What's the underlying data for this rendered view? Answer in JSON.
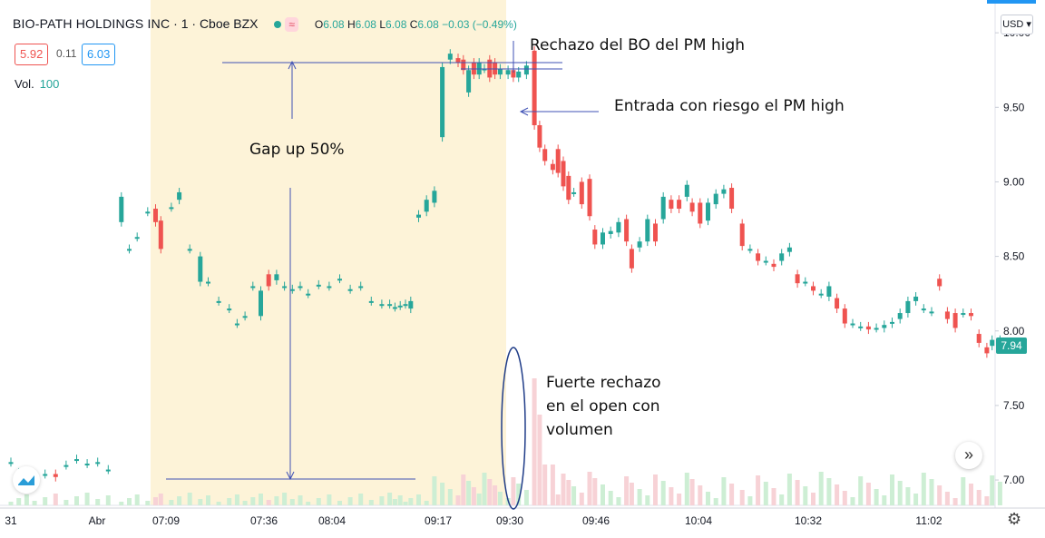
{
  "header": {
    "symbol": "BIO-PATH HOLDINGS INC",
    "interval": "· 1 ·",
    "exchange": "Cboe BZX",
    "badge": "≈",
    "ohlc": {
      "o": "6.08",
      "h": "6.08",
      "l": "6.08",
      "c": "6.08",
      "chg": "−0.03 (−0.49%)"
    },
    "labels": {
      "o": "O",
      "h": "H",
      "l": "L",
      "c": "C"
    }
  },
  "quote": {
    "bid": "5.92",
    "spread": "0.11",
    "ask": "6.03"
  },
  "volume": {
    "label": "Vol.",
    "value": "100"
  },
  "currency": "USD",
  "last_price": "7.94",
  "annotations": {
    "rejection_pm_high": "Rechazo del BO del PM high",
    "entry": "Entrada con riesgo el PM high",
    "gap": "Gap up 50%",
    "volume_rejection": "Fuerte rechazo\nen el open con\nvolumen"
  },
  "colors": {
    "up": "#26a69a",
    "down": "#ef5350",
    "premarket": "#fdf3d8",
    "volume_up": "#cdeed4",
    "volume_down": "#f7d2d6",
    "annotation_line": "#3f51b5"
  },
  "chart_data": {
    "type": "candlestick",
    "ylim": [
      6.83,
      10.22
    ],
    "yticks": [
      "10.00",
      "9.50",
      "9.00",
      "8.50",
      "8.00",
      "7.50",
      "7.00"
    ],
    "x_ticks": [
      "31",
      "Abr",
      "07:09",
      "07:36",
      "08:04",
      "09:17",
      "09:30",
      "09:46",
      "10:04",
      "10:32",
      "11:02"
    ],
    "candles": [
      {
        "i": 0,
        "o": 7.12,
        "c": 7.12
      },
      {
        "i": 3,
        "o": 7.05,
        "c": 7.05
      },
      {
        "i": 6,
        "o": 7.03,
        "c": 7.03
      },
      {
        "i": 9,
        "o": 7.04,
        "c": 7.04
      },
      {
        "i": 13,
        "o": 7.04,
        "c": 7.04
      },
      {
        "i": 17,
        "o": 7.04,
        "c": 7.02
      },
      {
        "i": 21,
        "o": 7.1,
        "c": 7.1
      },
      {
        "i": 25,
        "o": 7.14,
        "c": 7.14
      },
      {
        "i": 29,
        "o": 7.11,
        "c": 7.11
      },
      {
        "i": 33,
        "o": 7.12,
        "c": 7.12
      },
      {
        "i": 37,
        "o": 7.07,
        "c": 7.07
      },
      {
        "i": 42,
        "o": 8.73,
        "c": 8.9
      },
      {
        "i": 45,
        "o": 8.55,
        "c": 8.55
      },
      {
        "i": 48,
        "o": 8.63,
        "c": 8.63
      },
      {
        "i": 52,
        "o": 8.8,
        "c": 8.8
      },
      {
        "i": 55,
        "o": 8.82,
        "c": 8.73
      },
      {
        "i": 57,
        "o": 8.74,
        "c": 8.55
      },
      {
        "i": 61,
        "o": 8.83,
        "c": 8.83
      },
      {
        "i": 64,
        "o": 8.88,
        "c": 8.93
      },
      {
        "i": 68,
        "o": 8.55,
        "c": 8.55
      },
      {
        "i": 72,
        "o": 8.33,
        "c": 8.5
      },
      {
        "i": 75,
        "o": 8.33,
        "c": 8.33
      },
      {
        "i": 79,
        "o": 8.2,
        "c": 8.2
      },
      {
        "i": 83,
        "o": 8.15,
        "c": 8.15
      },
      {
        "i": 86,
        "o": 8.05,
        "c": 8.05
      },
      {
        "i": 89,
        "o": 8.1,
        "c": 8.1
      },
      {
        "i": 92,
        "o": 8.3,
        "c": 8.3
      },
      {
        "i": 95,
        "o": 8.1,
        "c": 8.27
      },
      {
        "i": 98,
        "o": 8.38,
        "c": 8.3
      },
      {
        "i": 101,
        "o": 8.34,
        "c": 8.38
      },
      {
        "i": 104,
        "o": 8.3,
        "c": 8.3
      },
      {
        "i": 107,
        "o": 8.28,
        "c": 8.28
      },
      {
        "i": 110,
        "o": 8.3,
        "c": 8.3
      },
      {
        "i": 113,
        "o": 8.25,
        "c": 8.25
      },
      {
        "i": 117,
        "o": 8.31,
        "c": 8.31
      },
      {
        "i": 121,
        "o": 8.3,
        "c": 8.3
      },
      {
        "i": 125,
        "o": 8.35,
        "c": 8.35
      },
      {
        "i": 129,
        "o": 8.28,
        "c": 8.28
      },
      {
        "i": 133,
        "o": 8.3,
        "c": 8.3
      },
      {
        "i": 137,
        "o": 8.2,
        "c": 8.2
      },
      {
        "i": 141,
        "o": 8.18,
        "c": 8.18
      },
      {
        "i": 144,
        "o": 8.18,
        "c": 8.18
      },
      {
        "i": 146,
        "o": 8.16,
        "c": 8.16
      },
      {
        "i": 148,
        "o": 8.17,
        "c": 8.17
      },
      {
        "i": 150,
        "o": 8.18,
        "c": 8.18
      },
      {
        "i": 152,
        "o": 8.15,
        "c": 8.2
      },
      {
        "i": 155,
        "o": 8.76,
        "c": 8.78
      },
      {
        "i": 158,
        "o": 8.8,
        "c": 8.88
      },
      {
        "i": 161,
        "o": 8.86,
        "c": 8.94
      },
      {
        "i": 164,
        "o": 9.3,
        "c": 9.77
      },
      {
        "i": 167,
        "o": 9.82,
        "c": 9.86
      },
      {
        "i": 170,
        "o": 9.83,
        "c": 9.8
      },
      {
        "i": 172,
        "o": 9.82,
        "c": 9.75
      },
      {
        "i": 174,
        "o": 9.6,
        "c": 9.75
      },
      {
        "i": 176,
        "o": 9.8,
        "c": 9.72
      },
      {
        "i": 178,
        "o": 9.72,
        "c": 9.8
      },
      {
        "i": 180,
        "o": 9.76,
        "c": 9.76
      },
      {
        "i": 182,
        "o": 9.82,
        "c": 9.7
      },
      {
        "i": 184,
        "o": 9.8,
        "c": 9.72
      },
      {
        "i": 186,
        "o": 9.72,
        "c": 9.76
      },
      {
        "i": 189,
        "o": 9.72,
        "c": 9.75
      },
      {
        "i": 191,
        "o": 9.75,
        "c": 9.7
      },
      {
        "i": 193,
        "o": 9.7,
        "c": 9.74
      },
      {
        "i": 196,
        "o": 9.72,
        "c": 9.78
      },
      {
        "i": 199,
        "o": 9.88,
        "c": 9.38
      },
      {
        "i": 201,
        "o": 9.38,
        "c": 9.23
      },
      {
        "i": 203,
        "o": 9.22,
        "c": 9.14
      },
      {
        "i": 206,
        "o": 9.12,
        "c": 9.08
      },
      {
        "i": 208,
        "o": 9.22,
        "c": 9.06
      },
      {
        "i": 210,
        "o": 9.14,
        "c": 8.97
      },
      {
        "i": 212,
        "o": 9.04,
        "c": 8.88
      },
      {
        "i": 214,
        "o": 8.93,
        "c": 8.93
      },
      {
        "i": 217,
        "o": 9.0,
        "c": 8.85
      },
      {
        "i": 220,
        "o": 9.02,
        "c": 8.77
      },
      {
        "i": 222,
        "o": 8.68,
        "c": 8.58
      },
      {
        "i": 225,
        "o": 8.58,
        "c": 8.66
      },
      {
        "i": 228,
        "o": 8.65,
        "c": 8.67
      },
      {
        "i": 231,
        "o": 8.66,
        "c": 8.73
      },
      {
        "i": 234,
        "o": 8.75,
        "c": 8.6
      },
      {
        "i": 236,
        "o": 8.55,
        "c": 8.42
      },
      {
        "i": 239,
        "o": 8.56,
        "c": 8.6
      },
      {
        "i": 242,
        "o": 8.6,
        "c": 8.75
      },
      {
        "i": 245,
        "o": 8.72,
        "c": 8.6
      },
      {
        "i": 248,
        "o": 8.75,
        "c": 8.9
      },
      {
        "i": 251,
        "o": 8.88,
        "c": 8.82
      },
      {
        "i": 254,
        "o": 8.88,
        "c": 8.82
      },
      {
        "i": 257,
        "o": 8.9,
        "c": 8.98
      },
      {
        "i": 259,
        "o": 8.86,
        "c": 8.8
      },
      {
        "i": 262,
        "o": 8.86,
        "c": 8.72
      },
      {
        "i": 265,
        "o": 8.74,
        "c": 8.86
      },
      {
        "i": 268,
        "o": 8.85,
        "c": 8.92
      },
      {
        "i": 271,
        "o": 8.92,
        "c": 8.95
      },
      {
        "i": 274,
        "o": 8.96,
        "c": 8.82
      },
      {
        "i": 278,
        "o": 8.72,
        "c": 8.57
      },
      {
        "i": 281,
        "o": 8.55,
        "c": 8.55
      },
      {
        "i": 284,
        "o": 8.52,
        "c": 8.47
      },
      {
        "i": 287,
        "o": 8.47,
        "c": 8.47
      },
      {
        "i": 290,
        "o": 8.45,
        "c": 8.43
      },
      {
        "i": 293,
        "o": 8.47,
        "c": 8.52
      },
      {
        "i": 296,
        "o": 8.53,
        "c": 8.56
      },
      {
        "i": 299,
        "o": 8.38,
        "c": 8.32
      },
      {
        "i": 302,
        "o": 8.33,
        "c": 8.33
      },
      {
        "i": 305,
        "o": 8.3,
        "c": 8.27
      },
      {
        "i": 308,
        "o": 8.25,
        "c": 8.25
      },
      {
        "i": 311,
        "o": 8.23,
        "c": 8.3
      },
      {
        "i": 314,
        "o": 8.22,
        "c": 8.15
      },
      {
        "i": 317,
        "o": 8.15,
        "c": 8.05
      },
      {
        "i": 320,
        "o": 8.05,
        "c": 8.05
      },
      {
        "i": 323,
        "o": 8.03,
        "c": 8.03
      },
      {
        "i": 326,
        "o": 8.03,
        "c": 8.01
      },
      {
        "i": 329,
        "o": 8.02,
        "c": 8.02
      },
      {
        "i": 332,
        "o": 8.02,
        "c": 8.04
      },
      {
        "i": 335,
        "o": 8.05,
        "c": 8.06
      },
      {
        "i": 338,
        "o": 8.08,
        "c": 8.12
      },
      {
        "i": 341,
        "o": 8.12,
        "c": 8.2
      },
      {
        "i": 344,
        "o": 8.2,
        "c": 8.23
      },
      {
        "i": 347,
        "o": 8.15,
        "c": 8.15
      },
      {
        "i": 350,
        "o": 8.13,
        "c": 8.13
      },
      {
        "i": 353,
        "o": 8.35,
        "c": 8.3
      },
      {
        "i": 356,
        "o": 8.13,
        "c": 8.08
      },
      {
        "i": 359,
        "o": 8.12,
        "c": 8.02
      },
      {
        "i": 362,
        "o": 8.12,
        "c": 8.12
      },
      {
        "i": 365,
        "o": 8.12,
        "c": 8.1
      },
      {
        "i": 368,
        "o": 7.98,
        "c": 7.92
      },
      {
        "i": 371,
        "o": 7.89,
        "c": 7.85
      },
      {
        "i": 373,
        "o": 7.9,
        "c": 7.94
      },
      {
        "i": 376,
        "o": 7.94,
        "c": 7.94
      }
    ],
    "volume_spike": {
      "i": 199,
      "ratio": 1.0
    }
  }
}
